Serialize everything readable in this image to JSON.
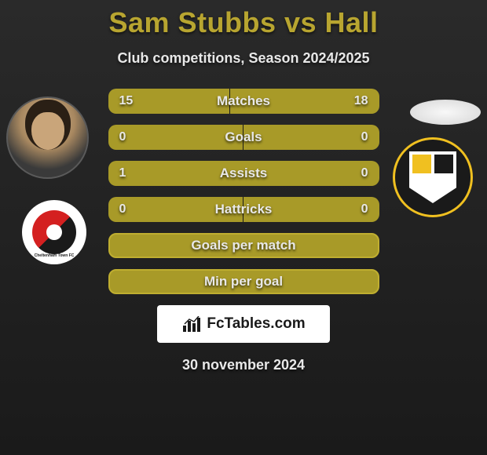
{
  "title": "Sam Stubbs vs Hall",
  "subtitle": "Club competitions, Season 2024/2025",
  "footer_date": "30 november 2024",
  "watermark": "FcTables.com",
  "colors": {
    "accent": "#b8a530",
    "bar_fill": "#a89a28",
    "bar_border": "#bfae30",
    "bg_top": "#2a2a2a",
    "bg_bottom": "#1a1a1a",
    "text": "#e8e8e8"
  },
  "left_club": {
    "name": "Cheltenham Town FC",
    "badge_colors": [
      "#d42020",
      "#1a1a1a",
      "#ffffff"
    ]
  },
  "right_club": {
    "name": "Port Vale FC",
    "badge_colors": [
      "#1a1a1a",
      "#f0c020",
      "#ffffff"
    ]
  },
  "bars": [
    {
      "label": "Matches",
      "left": "15",
      "right": "18",
      "left_pct": 45,
      "right_pct": 55,
      "split": true
    },
    {
      "label": "Goals",
      "left": "0",
      "right": "0",
      "left_pct": 50,
      "right_pct": 50,
      "split": true
    },
    {
      "label": "Assists",
      "left": "1",
      "right": "0",
      "left_pct": 100,
      "right_pct": 0,
      "split": false
    },
    {
      "label": "Hattricks",
      "left": "0",
      "right": "0",
      "left_pct": 50,
      "right_pct": 50,
      "split": true
    },
    {
      "label": "Goals per match",
      "left": "",
      "right": "",
      "left_pct": 100,
      "right_pct": 0,
      "split": false,
      "full": true
    },
    {
      "label": "Min per goal",
      "left": "",
      "right": "",
      "left_pct": 100,
      "right_pct": 0,
      "split": false,
      "full": true
    }
  ]
}
